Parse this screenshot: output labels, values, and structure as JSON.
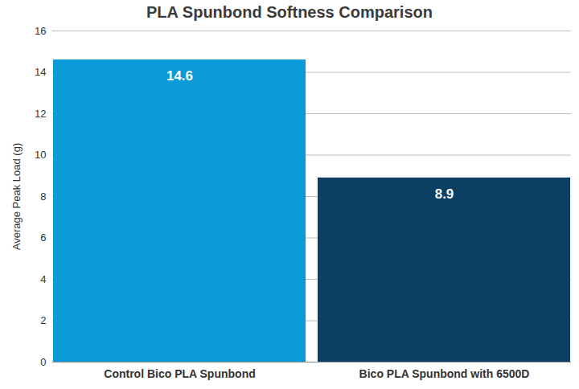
{
  "chart_data": {
    "type": "bar",
    "title": "PLA Spunbond Softness Comparison",
    "y_label": "Average Peak Load (g)",
    "categories": [
      "Control Bico PLA Spunbond",
      "Bico PLA Spunbond with 6500D"
    ],
    "values": [
      14.6,
      8.9
    ],
    "colors": [
      "#0a9ad7",
      "#0b3f63"
    ],
    "ylim": [
      0,
      16
    ],
    "yticks": [
      0,
      2,
      4,
      6,
      8,
      10,
      12,
      14,
      16
    ],
    "grid": true,
    "data_labels": true
  }
}
